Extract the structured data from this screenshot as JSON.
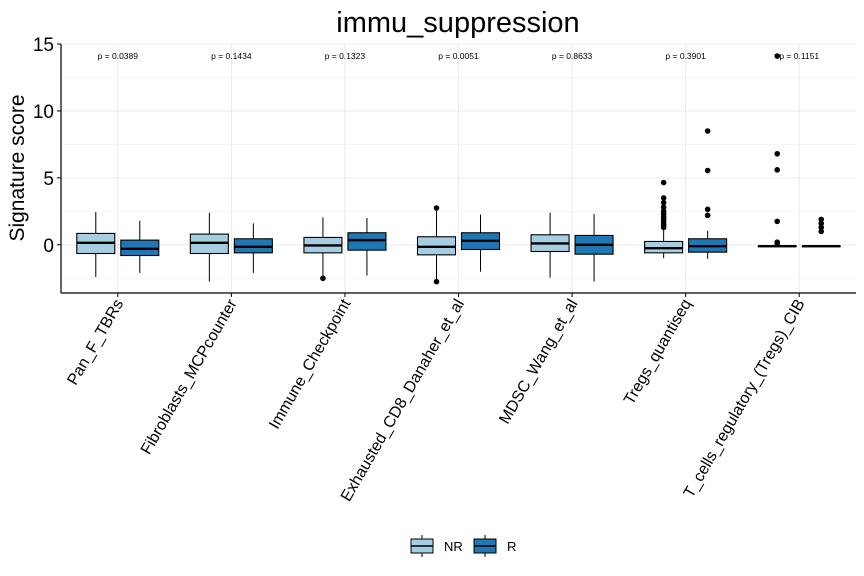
{
  "chart_data": {
    "type": "boxplot",
    "title": "immu_suppression",
    "xlabel": "",
    "ylabel": "Signature score",
    "ylim": [
      -3.6,
      15
    ],
    "yticks": [
      0,
      5,
      10,
      15
    ],
    "grid": true,
    "legend_position": "bottom",
    "categories": [
      "Pan_F_TBRs",
      "Fibroblasts_MCPcounter",
      "Immune_Checkpoint",
      "Exhausted_CD8_Danaher_et_al",
      "MDSC_Wang_et_al",
      "Tregs_quantiseq",
      "T_cells_regulatory_(Tregs)_CIB"
    ],
    "p_values": [
      "p = 0.0389",
      "p = 0.1434",
      "p = 0.1323",
      "p = 0.0051",
      "p = 0.8633",
      "p = 0.3901",
      "p = 0.1151"
    ],
    "series": [
      {
        "name": "NR",
        "color": "#a6cee3",
        "boxes": [
          {
            "min": -2.4,
            "q1": -0.65,
            "median": 0.15,
            "q3": 0.85,
            "max": 2.45,
            "outliers": []
          },
          {
            "min": -2.75,
            "q1": -0.65,
            "median": 0.15,
            "q3": 0.8,
            "max": 2.4,
            "outliers": []
          },
          {
            "min": -2.35,
            "q1": -0.6,
            "median": -0.05,
            "q3": 0.55,
            "max": 2.05,
            "outliers": [
              -2.5
            ]
          },
          {
            "min": -2.55,
            "q1": -0.75,
            "median": -0.15,
            "q3": 0.6,
            "max": 2.55,
            "outliers": [
              -2.75,
              2.75
            ]
          },
          {
            "min": -2.45,
            "q1": -0.5,
            "median": 0.1,
            "q3": 0.75,
            "max": 2.4,
            "outliers": []
          },
          {
            "min": -1.0,
            "q1": -0.6,
            "median": -0.25,
            "q3": 0.25,
            "max": 1.1,
            "outliers": [
              1.3,
              1.5,
              1.7,
              1.9,
              2.1,
              2.3,
              2.5,
              2.8,
              3.15,
              3.5,
              4.65
            ]
          },
          {
            "min": -0.1,
            "q1": -0.1,
            "median": -0.1,
            "q3": -0.1,
            "max": -0.1,
            "outliers": [
              0.1,
              0.2,
              1.75,
              5.6,
              6.8,
              14.1
            ]
          }
        ]
      },
      {
        "name": "R",
        "color": "#1f78b4",
        "boxes": [
          {
            "min": -2.1,
            "q1": -0.8,
            "median": -0.3,
            "q3": 0.35,
            "max": 1.8,
            "outliers": []
          },
          {
            "min": -2.1,
            "q1": -0.6,
            "median": -0.15,
            "q3": 0.45,
            "max": 1.6,
            "outliers": []
          },
          {
            "min": -2.3,
            "q1": -0.4,
            "median": 0.35,
            "q3": 0.9,
            "max": 2.0,
            "outliers": []
          },
          {
            "min": -2.0,
            "q1": -0.35,
            "median": 0.3,
            "q3": 0.9,
            "max": 2.25,
            "outliers": []
          },
          {
            "min": -2.75,
            "q1": -0.7,
            "median": 0.0,
            "q3": 0.7,
            "max": 2.3,
            "outliers": []
          },
          {
            "min": -1.05,
            "q1": -0.55,
            "median": -0.1,
            "q3": 0.45,
            "max": 1.05,
            "outliers": [
              2.2,
              2.65,
              5.55,
              8.5
            ]
          },
          {
            "min": -0.1,
            "q1": -0.1,
            "median": -0.1,
            "q3": -0.1,
            "max": -0.1,
            "outliers": [
              1.0,
              1.3,
              1.6,
              1.9
            ]
          }
        ]
      }
    ]
  }
}
